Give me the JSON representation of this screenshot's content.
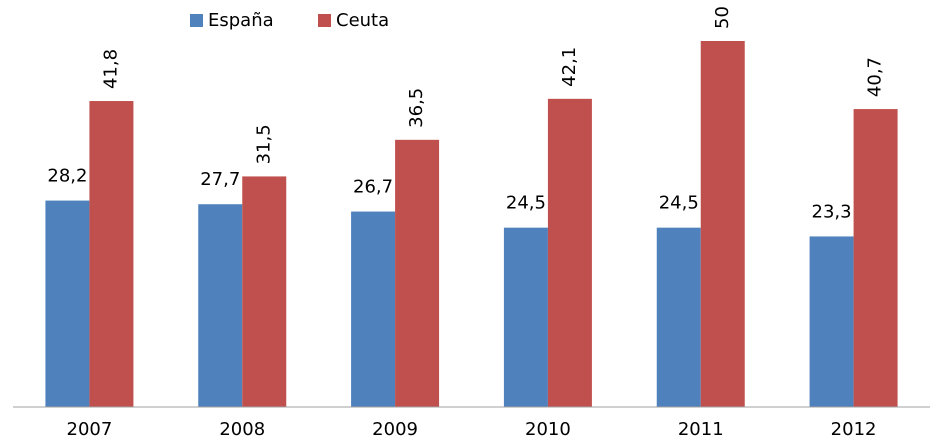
{
  "chart_data": {
    "type": "bar",
    "categories": [
      "2007",
      "2008",
      "2009",
      "2010",
      "2011",
      "2012"
    ],
    "series": [
      {
        "name": "España",
        "color": "#4f81bd",
        "values": [
          28.2,
          27.7,
          26.7,
          24.5,
          24.5,
          23.3
        ],
        "value_labels": [
          "28,2",
          "27,7",
          "26,7",
          "24,5",
          "24,5",
          "23,3"
        ]
      },
      {
        "name": "Ceuta",
        "color": "#c0504d",
        "values": [
          41.8,
          31.5,
          36.5,
          42.1,
          50,
          40.7
        ],
        "value_labels": [
          "41,8",
          "31,5",
          "36,5",
          "42,1",
          "50",
          "40,7"
        ]
      }
    ],
    "ylim": [
      0,
      50
    ],
    "legend": "top"
  }
}
